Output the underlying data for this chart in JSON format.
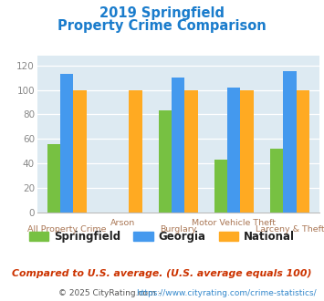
{
  "title_line1": "2019 Springfield",
  "title_line2": "Property Crime Comparison",
  "categories": [
    "All Property Crime",
    "Arson",
    "Burglary",
    "Motor Vehicle Theft",
    "Larceny & Theft"
  ],
  "series": {
    "Springfield": [
      56,
      null,
      83,
      43,
      52
    ],
    "Georgia": [
      113,
      null,
      110,
      102,
      115
    ],
    "National": [
      100,
      100,
      100,
      100,
      100
    ]
  },
  "colors": {
    "Springfield": "#77c142",
    "Georgia": "#4499ee",
    "National": "#ffaa22"
  },
  "ylim": [
    0,
    128
  ],
  "yticks": [
    0,
    20,
    40,
    60,
    80,
    100,
    120
  ],
  "legend_labels": [
    "Springfield",
    "Georgia",
    "National"
  ],
  "footnote1": "Compared to U.S. average. (U.S. average equals 100)",
  "footnote2_prefix": "© 2025 CityRating.com - ",
  "footnote2_url": "https://www.cityrating.com/crime-statistics/",
  "background_color": "#ddeaf2",
  "title_color": "#1a7ccc",
  "axis_label_color": "#aa7755",
  "ytick_color": "#888888",
  "footnote1_color": "#cc3300",
  "footnote2_color": "#555555",
  "footnote2_url_color": "#3388cc",
  "grid_color": "#ffffff"
}
